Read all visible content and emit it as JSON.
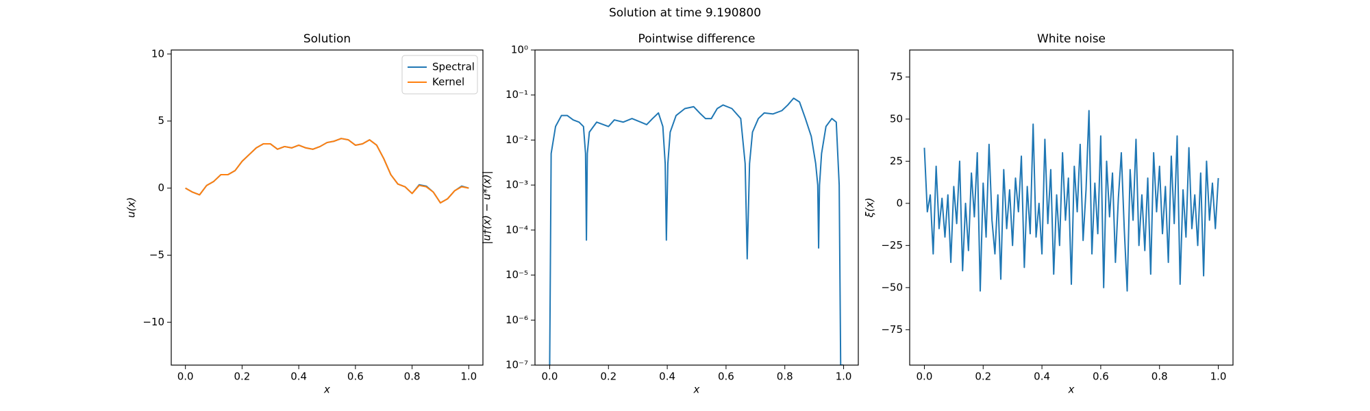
{
  "title": "Solution at time 9.190800",
  "chart_data": [
    {
      "type": "line",
      "title": "Solution",
      "xlabel": "x",
      "ylabel": "u(x)",
      "legend": "upper right",
      "xlim": [
        -0.05,
        1.05
      ],
      "ylim": [
        -13.2,
        10.3
      ],
      "xticks": [
        {
          "value": 0,
          "label": "0.0"
        },
        0.2,
        0.4,
        0.6,
        0.8,
        {
          "value": 1,
          "label": "1.0"
        }
      ],
      "yticks": [
        {
          "value": -10,
          "label": "−10"
        },
        {
          "value": -5,
          "label": "−5"
        },
        0,
        5,
        10
      ],
      "x": [
        0,
        0.025,
        0.05,
        0.075,
        0.1,
        0.125,
        0.15,
        0.175,
        0.2,
        0.225,
        0.25,
        0.275,
        0.3,
        0.325,
        0.35,
        0.375,
        0.4,
        0.425,
        0.45,
        0.475,
        0.5,
        0.525,
        0.55,
        0.575,
        0.6,
        0.625,
        0.65,
        0.675,
        0.7,
        0.725,
        0.75,
        0.775,
        0.8,
        0.825,
        0.85,
        0.875,
        0.9,
        0.925,
        0.95,
        0.975,
        1
      ],
      "series": [
        {
          "name": "Spectral",
          "color": "#1f77b4",
          "values": [
            0,
            -0.3,
            -0.5,
            0.2,
            0.5,
            1.0,
            1.0,
            1.3,
            2.0,
            2.5,
            3.0,
            3.3,
            3.3,
            2.9,
            3.1,
            3.0,
            3.2,
            3.0,
            2.9,
            3.1,
            3.4,
            3.5,
            3.7,
            3.6,
            3.2,
            3.3,
            3.6,
            3.2,
            2.2,
            1.0,
            0.3,
            0.1,
            -0.4,
            0.25,
            0.15,
            -0.3,
            -1.1,
            -0.8,
            -0.2,
            0.15,
            0
          ]
        },
        {
          "name": "Kernel",
          "color": "#ff7f0e",
          "values": [
            0,
            -0.3,
            -0.5,
            0.2,
            0.5,
            1.0,
            1.0,
            1.3,
            2.0,
            2.5,
            3.0,
            3.3,
            3.3,
            2.9,
            3.1,
            3.0,
            3.2,
            3.0,
            2.9,
            3.1,
            3.4,
            3.5,
            3.7,
            3.6,
            3.2,
            3.3,
            3.6,
            3.2,
            2.2,
            1.0,
            0.3,
            0.1,
            -0.4,
            0.2,
            0.1,
            -0.3,
            -1.1,
            -0.8,
            -0.2,
            0.1,
            0
          ]
        }
      ]
    },
    {
      "type": "line",
      "title": "Pointwise difference",
      "xlabel": "x",
      "ylabel": "|u†(x) − u*(x)|",
      "log_y": true,
      "xlim": [
        -0.05,
        1.05
      ],
      "ylim": [
        1e-07,
        1
      ],
      "xticks": [
        {
          "value": 0,
          "label": "0.0"
        },
        0.2,
        0.4,
        0.6,
        0.8,
        {
          "value": 1,
          "label": "1.0"
        }
      ],
      "yticks": [
        {
          "value": 1e-07,
          "label": "10⁻⁷"
        },
        {
          "value": 1e-06,
          "label": "10⁻⁶"
        },
        {
          "value": 1e-05,
          "label": "10⁻⁵"
        },
        {
          "value": 0.0001,
          "label": "10⁻⁴"
        },
        {
          "value": 0.001,
          "label": "10⁻³"
        },
        {
          "value": 0.01,
          "label": "10⁻²"
        },
        {
          "value": 0.1,
          "label": "10⁻¹"
        },
        {
          "value": 1,
          "label": "10⁰"
        }
      ],
      "x": [
        0,
        0.005,
        0.02,
        0.04,
        0.06,
        0.08,
        0.1,
        0.115,
        0.122,
        0.125,
        0.128,
        0.135,
        0.16,
        0.2,
        0.22,
        0.25,
        0.28,
        0.31,
        0.33,
        0.35,
        0.37,
        0.385,
        0.393,
        0.397,
        0.402,
        0.41,
        0.43,
        0.46,
        0.49,
        0.51,
        0.53,
        0.55,
        0.57,
        0.59,
        0.62,
        0.65,
        0.665,
        0.672,
        0.68,
        0.69,
        0.71,
        0.73,
        0.76,
        0.79,
        0.81,
        0.83,
        0.85,
        0.87,
        0.89,
        0.905,
        0.912,
        0.915,
        0.918,
        0.925,
        0.94,
        0.96,
        0.975,
        0.985,
        0.99,
        1
      ],
      "series": [
        {
          "color": "#1f77b4",
          "values": [
            1e-07,
            0.005,
            0.02,
            0.035,
            0.035,
            0.028,
            0.025,
            0.02,
            0.005,
            6e-05,
            0.005,
            0.015,
            0.025,
            0.02,
            0.028,
            0.025,
            0.03,
            0.025,
            0.022,
            0.03,
            0.04,
            0.02,
            0.003,
            6e-05,
            0.003,
            0.015,
            0.035,
            0.05,
            0.055,
            0.04,
            0.03,
            0.03,
            0.05,
            0.06,
            0.05,
            0.03,
            0.003,
            2.3e-05,
            0.003,
            0.015,
            0.03,
            0.04,
            0.038,
            0.045,
            0.06,
            0.085,
            0.07,
            0.03,
            0.012,
            0.003,
            0.001,
            4e-05,
            0.001,
            0.005,
            0.02,
            0.03,
            0.025,
            0.001,
            1e-07,
            1e-07
          ]
        }
      ]
    },
    {
      "type": "line",
      "title": "White noise",
      "xlabel": "x",
      "ylabel": "ξ(x)",
      "xlim": [
        -0.05,
        1.05
      ],
      "ylim": [
        -96,
        91
      ],
      "xticks": [
        {
          "value": 0,
          "label": "0.0"
        },
        0.2,
        0.4,
        0.6,
        0.8,
        {
          "value": 1,
          "label": "1.0"
        }
      ],
      "yticks": [
        {
          "value": -75,
          "label": "−75"
        },
        {
          "value": -50,
          "label": "−50"
        },
        {
          "value": -25,
          "label": "−25"
        },
        0,
        25,
        50,
        75
      ],
      "x": [
        0,
        0.01,
        0.02,
        0.03,
        0.04,
        0.05,
        0.06,
        0.07,
        0.08,
        0.09,
        0.1,
        0.11,
        0.12,
        0.13,
        0.14,
        0.15,
        0.16,
        0.17,
        0.18,
        0.19,
        0.2,
        0.21,
        0.22,
        0.23,
        0.24,
        0.25,
        0.26,
        0.27,
        0.28,
        0.29,
        0.3,
        0.31,
        0.32,
        0.33,
        0.34,
        0.35,
        0.36,
        0.37,
        0.38,
        0.39,
        0.4,
        0.41,
        0.42,
        0.43,
        0.44,
        0.45,
        0.46,
        0.47,
        0.48,
        0.49,
        0.5,
        0.51,
        0.52,
        0.53,
        0.54,
        0.55,
        0.56,
        0.57,
        0.58,
        0.59,
        0.6,
        0.61,
        0.62,
        0.63,
        0.64,
        0.65,
        0.66,
        0.67,
        0.68,
        0.69,
        0.7,
        0.71,
        0.72,
        0.73,
        0.74,
        0.75,
        0.76,
        0.77,
        0.78,
        0.79,
        0.8,
        0.81,
        0.82,
        0.83,
        0.84,
        0.85,
        0.86,
        0.87,
        0.88,
        0.89,
        0.9,
        0.91,
        0.92,
        0.93,
        0.94,
        0.95,
        0.96,
        0.97,
        0.98,
        0.99,
        1
      ],
      "series": [
        {
          "color": "#1f77b4",
          "values": [
            33,
            -5,
            5,
            -30,
            22,
            -15,
            3,
            -20,
            5,
            -35,
            10,
            -12,
            25,
            -40,
            0,
            -28,
            18,
            -8,
            30,
            -52,
            12,
            -20,
            35,
            -10,
            -30,
            5,
            -45,
            20,
            -15,
            8,
            -25,
            15,
            -5,
            28,
            -38,
            10,
            -18,
            47,
            -20,
            0,
            -30,
            38,
            -12,
            20,
            -42,
            5,
            -25,
            30,
            -10,
            15,
            -48,
            22,
            -5,
            35,
            -22,
            8,
            55,
            -30,
            12,
            -18,
            40,
            -50,
            25,
            -8,
            18,
            -35,
            3,
            30,
            -15,
            -52,
            20,
            -10,
            38,
            -25,
            5,
            -28,
            15,
            -42,
            30,
            -5,
            22,
            -18,
            10,
            -35,
            28,
            -12,
            40,
            -48,
            8,
            -20,
            33,
            -15,
            5,
            -25,
            18,
            -43,
            25,
            -10,
            12,
            -15,
            15
          ]
        }
      ]
    }
  ]
}
